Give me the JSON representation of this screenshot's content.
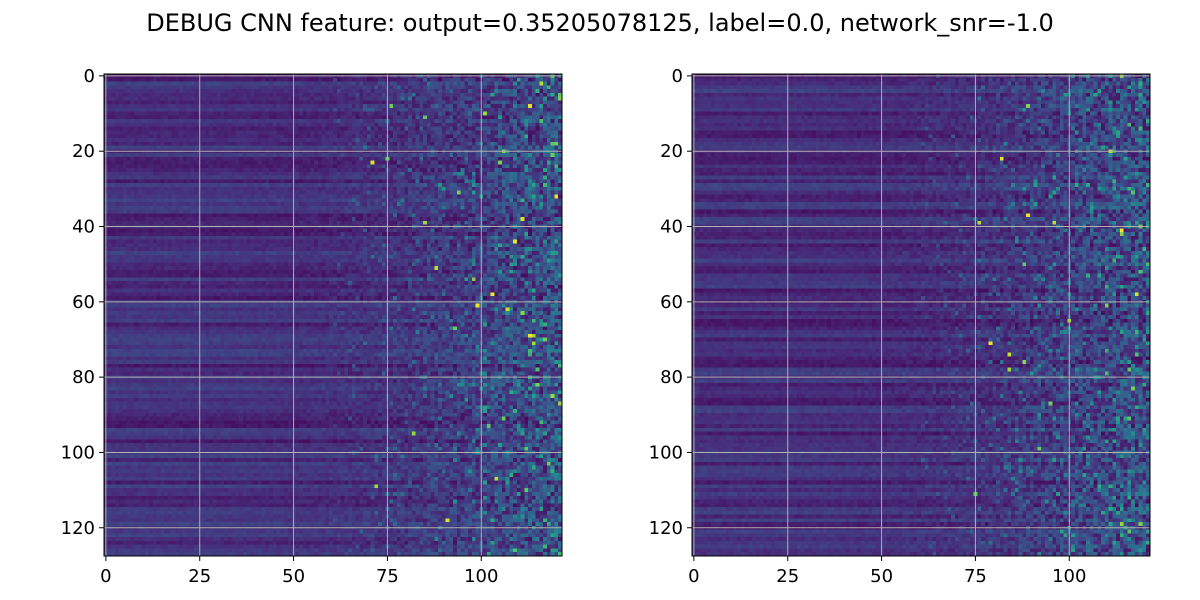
{
  "title": "DEBUG CNN feature: output=0.35205078125, label=0.0, network_snr=-1.0",
  "chart_data": [
    {
      "type": "heatmap",
      "colormap": "viridis",
      "rows": 128,
      "cols": 122,
      "xlim": [
        0,
        122
      ],
      "ylim": [
        128,
        0
      ],
      "xticks": [
        0,
        25,
        50,
        75,
        100
      ],
      "yticks": [
        0,
        20,
        40,
        60,
        80,
        100,
        120
      ],
      "xtick_labels": [
        "0",
        "25",
        "50",
        "75",
        "100"
      ],
      "ytick_labels": [
        "0",
        "20",
        "40",
        "60",
        "80",
        "100",
        "120"
      ],
      "grid": true,
      "pattern": "low uniform-ish values for columns 0-50, increasing noisy sparse high values for columns 60-122",
      "seed": 7
    },
    {
      "type": "heatmap",
      "colormap": "viridis",
      "rows": 128,
      "cols": 122,
      "xlim": [
        0,
        122
      ],
      "ylim": [
        128,
        0
      ],
      "xticks": [
        0,
        25,
        50,
        75,
        100
      ],
      "yticks": [
        0,
        20,
        40,
        60,
        80,
        100,
        120
      ],
      "xtick_labels": [
        "0",
        "25",
        "50",
        "75",
        "100"
      ],
      "ytick_labels": [
        "0",
        "20",
        "40",
        "60",
        "80",
        "100",
        "120"
      ],
      "grid": true,
      "pattern": "low uniform-ish values for columns 0-50, increasing noisy sparse high values for columns 60-122",
      "seed": 19
    }
  ]
}
